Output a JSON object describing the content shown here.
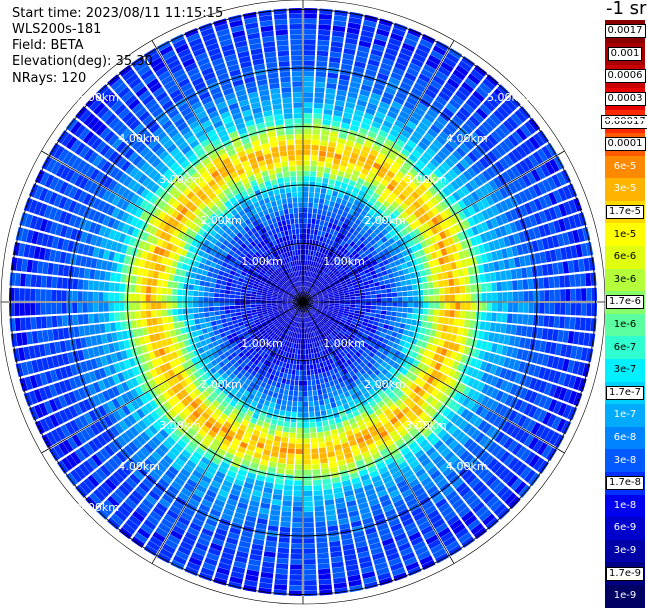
{
  "header": {
    "start_time": "Start time: 2023/08/11 11:15:15",
    "instrument": "WLS200s-181",
    "field": "Field: BETA",
    "elevation": "Elevation(deg): 35.30",
    "nrays": "NRays: 120"
  },
  "chart_data": {
    "type": "heatmap",
    "projection": "polar (PPI scan)",
    "field": "BETA",
    "nrays": 120,
    "range_rings_km": [
      1,
      2,
      3,
      4,
      5
    ],
    "ring_labels": [
      "1.00km",
      "2.00km",
      "3.00km",
      "4.00km",
      "5.00km"
    ],
    "max_range_km": 7.0,
    "profile": [
      {
        "range_km": 0.0,
        "beta": 5e-09
      },
      {
        "range_km": 1.0,
        "beta": 8e-09
      },
      {
        "range_km": 2.0,
        "beta": 2e-08
      },
      {
        "range_km": 2.7,
        "beta": 1.2e-07
      },
      {
        "range_km": 3.0,
        "beta": 8e-07
      },
      {
        "range_km": 3.3,
        "beta": 8e-06
      },
      {
        "range_km": 3.6,
        "beta": 4e-05
      },
      {
        "range_km": 4.0,
        "beta": 4e-06
      },
      {
        "range_km": 4.5,
        "beta": 1.5e-07
      },
      {
        "range_km": 5.5,
        "beta": 3e-08
      },
      {
        "range_km": 7.0,
        "beta": 1.5e-08
      }
    ],
    "colorbar": {
      "units": "-1 sr",
      "labels": [
        "0.0017",
        "0.001",
        "0.0006",
        "0.0003",
        "0.00017",
        "0.0001",
        "6e-5",
        "3e-5",
        "1.7e-5",
        "1e-5",
        "6e-6",
        "3e-6",
        "1.7e-6",
        "1e-6",
        "6e-7",
        "3e-7",
        "1.7e-7",
        "1e-7",
        "6e-8",
        "3e-8",
        "1.7e-8",
        "1e-8",
        "6e-9",
        "3e-9",
        "1.7e-9",
        "1e-9"
      ],
      "colors": [
        "#8a0000",
        "#a80000",
        "#c80000",
        "#e80000",
        "#ff2a00",
        "#ff5a00",
        "#ff8a00",
        "#ffb400",
        "#ffd800",
        "#ffff00",
        "#e0ff10",
        "#b4ff3a",
        "#86ff6a",
        "#5cffa0",
        "#30ffd0",
        "#00f0ff",
        "#00d0ff",
        "#00aaff",
        "#0084ff",
        "#005aff",
        "#0030ff",
        "#0000f0",
        "#0000cc",
        "#0000a8",
        "#000084",
        "#000064"
      ],
      "boxed_labels": [
        "0.0017",
        "0.001",
        "0.0006",
        "0.0003",
        "0.00017",
        "0.0001",
        "1.7e-5",
        "1.7e-6",
        "1.7e-7",
        "1.7e-8",
        "1.7e-9"
      ]
    }
  }
}
